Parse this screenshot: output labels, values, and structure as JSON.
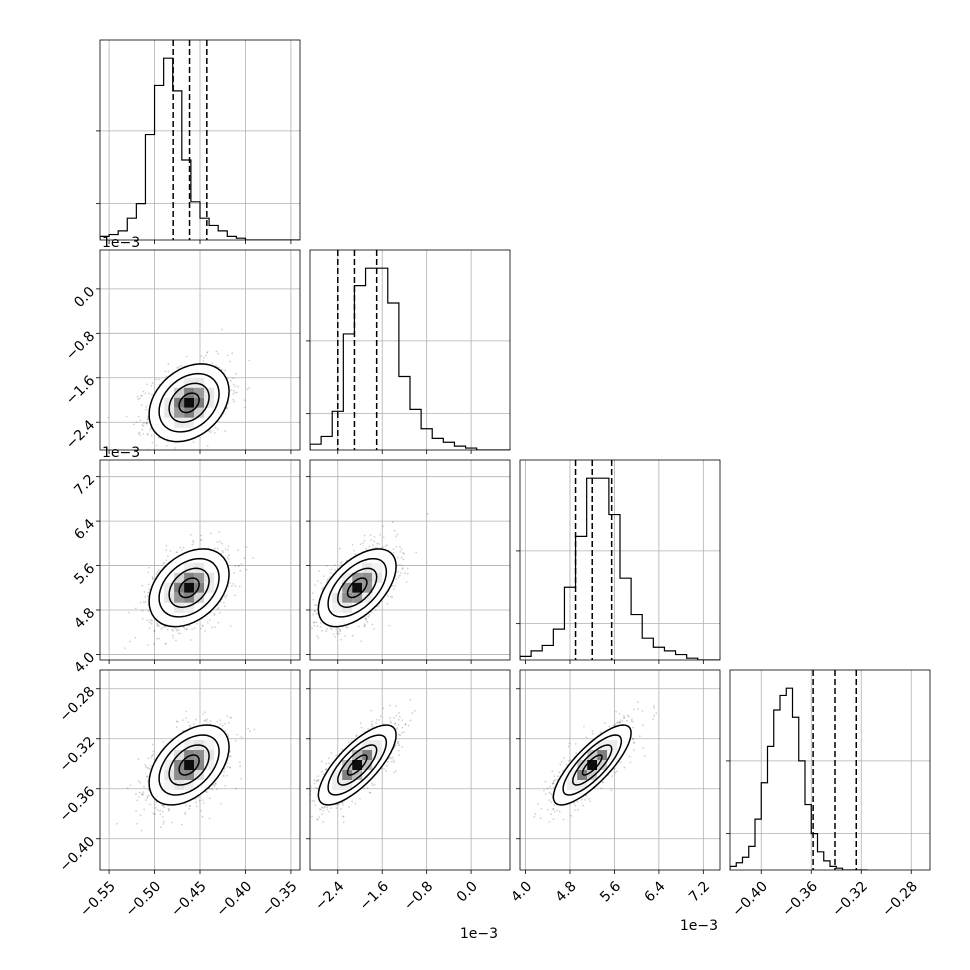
{
  "chart_data": {
    "type": "corner",
    "title": "",
    "parameters": [
      {
        "range": [
          -0.56,
          -0.34
        ],
        "ticks": [
          -0.55,
          -0.5,
          -0.45,
          -0.4,
          -0.35
        ],
        "tick_labels": [
          "−0.55",
          "−0.50",
          "−0.45",
          "−0.40",
          "−0.35"
        ],
        "offset_label": "",
        "mean": -0.462,
        "std": 0.022,
        "quantiles": [
          -0.4795,
          -0.4615,
          -0.4425
        ],
        "hist_edges_start": -0.56,
        "hist_bin_width": 0.01,
        "hist_counts": [
          2,
          3,
          5,
          12,
          20,
          58,
          85,
          100,
          82,
          44,
          21,
          12,
          8,
          5,
          2,
          1,
          0,
          0,
          0,
          0,
          0,
          0
        ]
      },
      {
        "range": [
          -0.0029,
          0.0007
        ],
        "ticks": [
          -0.0024,
          -0.0016,
          -0.0008,
          0.0
        ],
        "tick_labels": [
          "−2.4",
          "−1.6",
          "−0.8",
          "0.0"
        ],
        "offset_label": "1e−3",
        "mean": -0.00205,
        "std": 0.00035,
        "quantiles": [
          -0.0024,
          -0.0021,
          -0.0017
        ],
        "hist_edges_start": -0.0029,
        "hist_bin_width": 0.0002,
        "hist_counts": [
          3,
          7,
          20,
          60,
          85,
          94,
          94,
          76,
          38,
          21,
          11,
          6,
          4,
          2,
          1,
          0,
          0,
          0,
          0,
          0
        ]
      },
      {
        "range": [
          0.0039,
          0.0075
        ],
        "ticks": [
          0.004,
          0.0048,
          0.0056,
          0.0064,
          0.0072
        ],
        "tick_labels": [
          "4.0",
          "4.8",
          "5.6",
          "6.4",
          "7.2"
        ],
        "offset_label": "1e−3",
        "mean": 0.0052,
        "std": 0.00035,
        "quantiles": [
          0.0049,
          0.0052,
          0.00555
        ],
        "hist_edges_start": 0.0039,
        "hist_bin_width": 0.0002,
        "hist_counts": [
          2,
          5,
          8,
          17,
          40,
          68,
          100,
          100,
          80,
          45,
          25,
          12,
          7,
          5,
          3,
          1,
          0,
          0
        ]
      },
      {
        "range": [
          -0.425,
          -0.265
        ],
        "ticks": [
          -0.4,
          -0.36,
          -0.32,
          -0.28
        ],
        "tick_labels": [
          "−0.40",
          "−0.36",
          "−0.32",
          "−0.28"
        ],
        "offset_label": "",
        "mean": -0.341,
        "std": 0.016,
        "quantiles": [
          -0.3585,
          -0.341,
          -0.324
        ],
        "hist_edges_start": -0.425,
        "hist_bin_width": 0.005,
        "hist_counts": [
          2,
          4,
          7,
          13,
          28,
          48,
          68,
          88,
          96,
          100,
          84,
          60,
          36,
          20,
          10,
          5,
          2,
          1,
          0,
          0,
          0,
          0
        ]
      }
    ],
    "correlations": [
      [
        1.0,
        0.3,
        0.35,
        0.45
      ],
      [
        0.3,
        1.0,
        0.55,
        0.75
      ],
      [
        0.35,
        0.55,
        1.0,
        0.8
      ],
      [
        0.45,
        0.75,
        0.8,
        1.0
      ]
    ],
    "diag_yticks": [
      0.2,
      0.6
    ],
    "grid": true,
    "show_quantiles": true,
    "contour_levels_sigma": [
      0.5,
      1.0,
      1.5,
      2.0
    ]
  }
}
